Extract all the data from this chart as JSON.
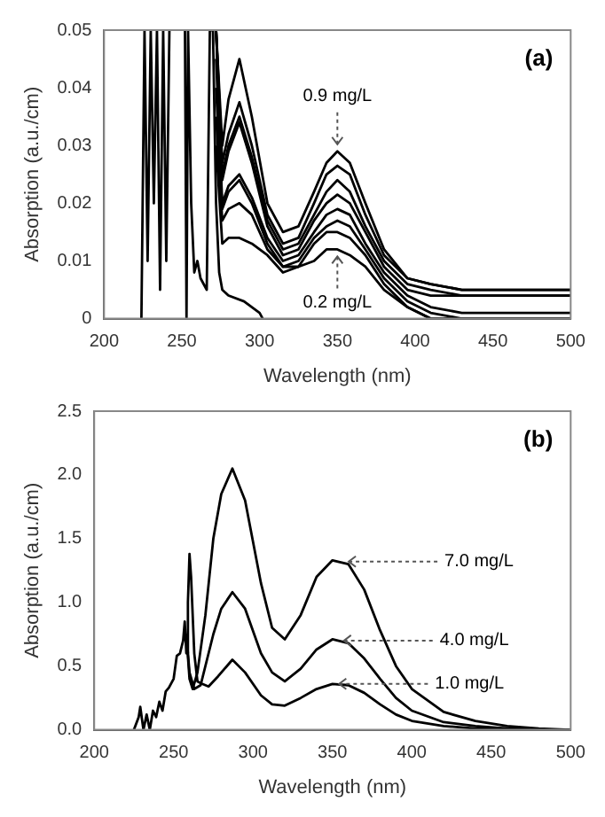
{
  "chart_data": [
    {
      "type": "line",
      "xlabel": "Wavelength (nm)",
      "ylabel": "Absorption (a.u./cm)",
      "xlim": [
        200,
        500
      ],
      "xticks": [
        200,
        250,
        300,
        350,
        400,
        450,
        500
      ],
      "ylim": [
        0,
        0.05
      ],
      "yticks": [
        0,
        0.01,
        0.02,
        0.03,
        0.04,
        0.05
      ],
      "grid": false,
      "legend": false,
      "marker": "none",
      "line_style": "solid",
      "annotations": [
        "(a)",
        {
          "text": "0.9 mg/L",
          "x": 350,
          "y": 0.029
        },
        {
          "text": "0.2 mg/L",
          "x": 350,
          "y": 0.012
        }
      ],
      "x": [
        272,
        276,
        280,
        287,
        295,
        305,
        315,
        325,
        335,
        343,
        350,
        358,
        368,
        380,
        395,
        410,
        430,
        460,
        500
      ],
      "series": [
        {
          "color": "#000000",
          "values": [
            0.05,
            0.03,
            0.038,
            0.045,
            0.035,
            0.02,
            0.015,
            0.016,
            0.022,
            0.027,
            0.029,
            0.027,
            0.02,
            0.012,
            0.007,
            0.006,
            0.005,
            0.005,
            0.005
          ]
        },
        {
          "color": "#000000",
          "values": [
            0.05,
            0.027,
            0.032,
            0.0375,
            0.03,
            0.018,
            0.013,
            0.014,
            0.02,
            0.025,
            0.0265,
            0.025,
            0.018,
            0.011,
            0.007,
            0.006,
            0.005,
            0.005,
            0.005
          ]
        },
        {
          "color": "#000000",
          "values": [
            0.05,
            0.025,
            0.03,
            0.035,
            0.028,
            0.017,
            0.012,
            0.013,
            0.018,
            0.022,
            0.024,
            0.022,
            0.016,
            0.01,
            0.006,
            0.005,
            0.004,
            0.004,
            0.004
          ]
        },
        {
          "color": "#000000",
          "values": [
            0.05,
            0.024,
            0.029,
            0.034,
            0.027,
            0.016,
            0.011,
            0.012,
            0.017,
            0.02,
            0.0215,
            0.02,
            0.015,
            0.009,
            0.005,
            0.004,
            0.004,
            0.004,
            0.004
          ]
        },
        {
          "color": "#000000",
          "values": [
            0.045,
            0.02,
            0.023,
            0.025,
            0.021,
            0.014,
            0.01,
            0.011,
            0.015,
            0.018,
            0.019,
            0.018,
            0.013,
            0.008,
            0.004,
            0.002,
            0.001,
            0.001,
            0.001
          ]
        },
        {
          "color": "#000000",
          "values": [
            0.04,
            0.019,
            0.022,
            0.024,
            0.02,
            0.013,
            0.009,
            0.01,
            0.014,
            0.016,
            0.017,
            0.016,
            0.012,
            0.007,
            0.003,
            0.001,
            0,
            0,
            0
          ]
        },
        {
          "color": "#000000",
          "values": [
            0.035,
            0.017,
            0.019,
            0.02,
            0.018,
            0.012,
            0.009,
            0.009,
            0.013,
            0.015,
            0.015,
            0.014,
            0.011,
            0.006,
            0.002,
            0,
            0,
            0,
            0
          ]
        },
        {
          "color": "#000000",
          "values": [
            0.03,
            0.013,
            0.014,
            0.014,
            0.013,
            0.011,
            0.008,
            0.009,
            0.01,
            0.012,
            0.012,
            0.011,
            0.009,
            0.005,
            0.002,
            0,
            0,
            0,
            0
          ]
        },
        {
          "color": "#000000",
          "x": [
            224,
            226,
            228,
            230,
            232,
            234,
            236,
            238,
            240,
            242,
            243,
            252,
            253,
            254,
            256,
            258,
            260,
            262,
            264,
            266,
            268,
            270,
            272,
            274,
            276,
            280,
            290,
            295,
            300,
            302
          ],
          "values": [
            0,
            0.05,
            0.01,
            0.05,
            0.02,
            0.05,
            0.005,
            0.05,
            0.01,
            0.05,
            null,
            0.05,
            0,
            0.05,
            0.02,
            0.008,
            0.01,
            0.007,
            0.006,
            0.005,
            0.05,
            0.05,
            0.02,
            0.008,
            0.005,
            0.004,
            0.003,
            0.002,
            0.001,
            0
          ]
        }
      ]
    },
    {
      "type": "line",
      "xlabel": "Wavelength (nm)",
      "ylabel": "Absorption (a.u./cm)",
      "xlim": [
        200,
        500
      ],
      "xticks": [
        200,
        250,
        300,
        350,
        400,
        450,
        500
      ],
      "ylim": [
        0,
        2.5
      ],
      "yticks": [
        {
          "value": 0,
          "label": "0.0"
        },
        {
          "value": 0.5,
          "label": "0.5"
        },
        {
          "value": 1,
          "label": "1.0"
        },
        {
          "value": 1.5,
          "label": "1.5"
        },
        {
          "value": 2,
          "label": "2.0"
        },
        {
          "value": 2.5,
          "label": "2.5"
        }
      ],
      "grid": false,
      "legend": false,
      "marker": "none",
      "line_style": "solid",
      "annotations": [
        "(b)",
        {
          "text": "7.0 mg/L",
          "x": 358,
          "y": 1.32
        },
        {
          "text": "4.0 mg/L",
          "x": 355,
          "y": 0.7
        },
        {
          "text": "1.0 mg/L",
          "x": 352,
          "y": 0.36
        }
      ],
      "series": [
        {
          "color": "#000000",
          "x": [
            225,
            228,
            229,
            231,
            233,
            235,
            237,
            239,
            241,
            243,
            245,
            247,
            250,
            252,
            254,
            256,
            257,
            258,
            259,
            260,
            261,
            263,
            265,
            268,
            272,
            278,
            287,
            295,
            305,
            312,
            320,
            330,
            340,
            350,
            360,
            370,
            380,
            390,
            400,
            420,
            440,
            460,
            480,
            500
          ],
          "values": [
            0,
            0.1,
            0.18,
            0,
            0.12,
            0,
            0.15,
            0.1,
            0.22,
            0.15,
            0.3,
            0.33,
            0.4,
            0.58,
            0.6,
            0.7,
            0.85,
            0.6,
            1.0,
            1.38,
            1.2,
            0.6,
            0.38,
            0.36,
            0.34,
            0.42,
            0.55,
            0.45,
            0.27,
            0.2,
            0.19,
            0.25,
            0.32,
            0.36,
            0.35,
            0.29,
            0.2,
            0.12,
            0.07,
            0.03,
            0.01,
            0.01,
            0,
            0
          ]
        },
        {
          "color": "#000000",
          "x": [
            258,
            260,
            263,
            267,
            275,
            280,
            287,
            295,
            305,
            312,
            320,
            330,
            340,
            350,
            360,
            370,
            380,
            390,
            400,
            420,
            440,
            460,
            480,
            500
          ],
          "values": [
            0.75,
            0.45,
            0.32,
            0.35,
            0.75,
            0.95,
            1.08,
            0.95,
            0.6,
            0.45,
            0.38,
            0.48,
            0.63,
            0.71,
            0.68,
            0.56,
            0.4,
            0.25,
            0.15,
            0.06,
            0.03,
            0.01,
            0,
            0
          ]
        },
        {
          "color": "#000000",
          "x": [
            258,
            260,
            262,
            265,
            270,
            275,
            280,
            287,
            295,
            305,
            312,
            320,
            330,
            340,
            350,
            360,
            370,
            380,
            390,
            400,
            420,
            440,
            460,
            480,
            500
          ],
          "values": [
            0.75,
            0.4,
            0.32,
            0.45,
            0.9,
            1.5,
            1.85,
            2.05,
            1.8,
            1.15,
            0.8,
            0.71,
            0.9,
            1.2,
            1.33,
            1.3,
            1.1,
            0.78,
            0.5,
            0.32,
            0.14,
            0.07,
            0.03,
            0.01,
            0
          ]
        }
      ]
    }
  ]
}
